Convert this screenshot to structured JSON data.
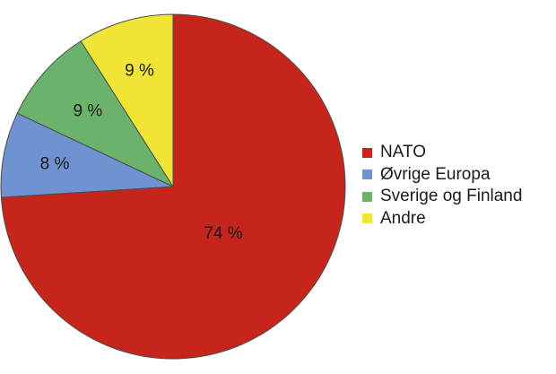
{
  "chart_data": {
    "type": "pie",
    "title": "",
    "start_angle_deg": 0,
    "direction": "clockwise",
    "slices": [
      {
        "name": "NATO",
        "value": 74,
        "label": "74 %",
        "color": "#c5251b"
      },
      {
        "name": "Øvrige Europa",
        "value": 8,
        "label": "8 %",
        "color": "#6f93d0"
      },
      {
        "name": "Sverige og Finland",
        "value": 9,
        "label": "9 %",
        "color": "#6bb26a"
      },
      {
        "name": "Andre",
        "value": 9,
        "label": "9 %",
        "color": "#f0e535"
      }
    ],
    "legend_position": "right"
  },
  "legend": {
    "items": [
      {
        "label": "NATO",
        "color": "#c5251b"
      },
      {
        "label": "Øvrige Europa",
        "color": "#6f93d0"
      },
      {
        "label": "Sverige og Finland",
        "color": "#6bb26a"
      },
      {
        "label": "Andre",
        "color": "#f0e535"
      }
    ]
  }
}
